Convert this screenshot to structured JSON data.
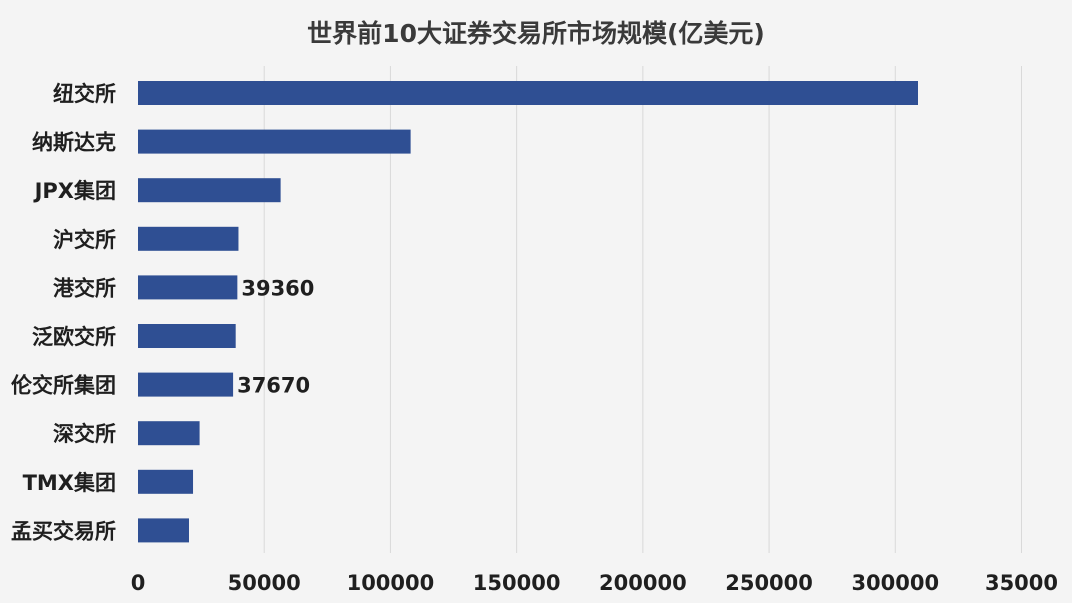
{
  "chart_data": {
    "type": "bar",
    "orientation": "horizontal",
    "title": "世界前10大证券交易所市场规模(亿美元)",
    "xlabel": "",
    "ylabel": "",
    "categories": [
      "纽交所",
      "纳斯达克",
      "JPX集团",
      "沪交所",
      "港交所",
      "泛欧交所",
      "伦交所集团",
      "深交所",
      "TMX集团",
      "孟买交易所"
    ],
    "values": [
      309000,
      108000,
      56500,
      39800,
      39360,
      38700,
      37670,
      24400,
      21800,
      20200
    ],
    "data_labels": [
      {
        "category": "港交所",
        "text": "39360"
      },
      {
        "category": "伦交所集团",
        "text": "37670"
      }
    ],
    "xlim": [
      0,
      350000
    ],
    "x_ticks": [
      "0",
      "50000",
      "100000",
      "150000",
      "200000",
      "250000",
      "300000",
      "35000"
    ],
    "grid": true,
    "bar_color": "#2f4f93"
  }
}
